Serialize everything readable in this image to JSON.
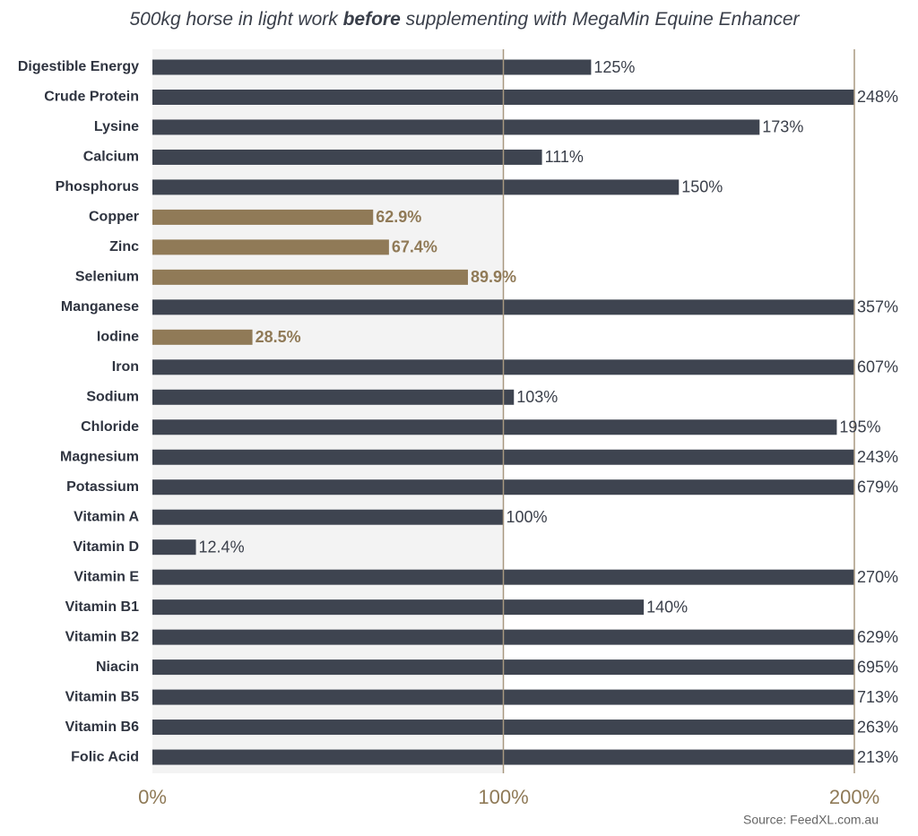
{
  "chart_data": {
    "type": "bar",
    "orientation": "horizontal",
    "title": [
      "500kg horse in light work ",
      "before",
      " supplementing with MegaMin Equine Enhancer"
    ],
    "categories": [
      "Digestible Energy",
      "Crude Protein",
      "Lysine",
      "Calcium",
      "Phosphorus",
      "Copper",
      "Zinc",
      "Selenium",
      "Manganese",
      "Iodine",
      "Iron",
      "Sodium",
      "Chloride",
      "Magnesium",
      "Potassium",
      "Vitamin A",
      "Vitamin D",
      "Vitamin E",
      "Vitamin B1",
      "Vitamin B2",
      "Niacin",
      "Vitamin B5",
      "Vitamin B6",
      "Folic Acid"
    ],
    "values": [
      125,
      248,
      173,
      111,
      150,
      62.9,
      67.4,
      89.9,
      357,
      28.5,
      607,
      103,
      195,
      243,
      679,
      100,
      12.4,
      270,
      140,
      629,
      695,
      713,
      263,
      213
    ],
    "value_labels": [
      "125%",
      "248%",
      "173%",
      "111%",
      "150%",
      "62.9%",
      "67.4%",
      "89.9%",
      "357%",
      "28.5%",
      "607%",
      "103%",
      "195%",
      "243%",
      "679%",
      "100%",
      "12.4%",
      "270%",
      "140%",
      "629%",
      "695%",
      "713%",
      "263%",
      "213%"
    ],
    "color": "#3e4450",
    "colors": [
      "#3e4450",
      "#3e4450",
      "#3e4450",
      "#3e4450",
      "#3e4450",
      "#907a57",
      "#907a57",
      "#907a57",
      "#3e4450",
      "#907a57",
      "#3e4450",
      "#3e4450",
      "#3e4450",
      "#3e4450",
      "#3e4450",
      "#3e4450",
      "#3e4450",
      "#3e4450",
      "#3e4450",
      "#3e4450",
      "#3e4450",
      "#3e4450",
      "#3e4450",
      "#3e4450"
    ],
    "xlim": [
      0,
      200
    ],
    "xticks": [
      {
        "value": 0,
        "label": "0%"
      },
      {
        "value": 100,
        "label": "100%"
      },
      {
        "value": 200,
        "label": "200%"
      }
    ],
    "grid": true,
    "source": "Source: FeedXL.com.au"
  }
}
